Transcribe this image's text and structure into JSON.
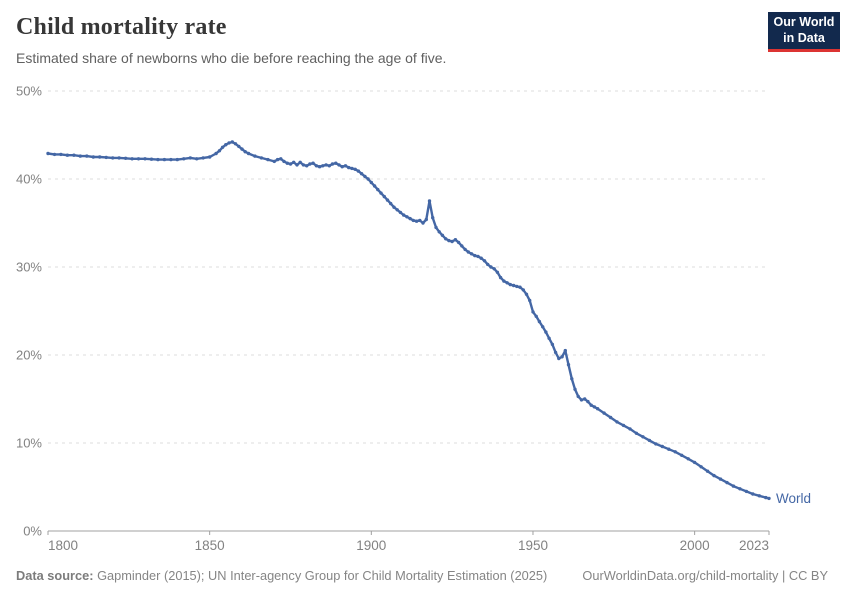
{
  "header": {
    "title": "Child mortality rate",
    "subtitle": "Estimated share of newborns who die before reaching the age of five."
  },
  "logo": {
    "line1": "Our World",
    "line2": "in Data",
    "bg_color": "#12294d",
    "accent_color": "#dc3432"
  },
  "footer": {
    "data_source_label": "Data source:",
    "data_source_text": " Gapminder (2015); UN Inter-agency Group for Child Mortality Estimation (2025)",
    "attribution_link": "OurWorldinData.org/child-mortality",
    "attribution_suffix": " | CC BY"
  },
  "chart_data": {
    "type": "line",
    "title": "Child mortality rate",
    "subtitle": "Estimated share of newborns who die before reaching the age of five.",
    "xlabel": "",
    "ylabel": "",
    "xlim": [
      1800,
      2023
    ],
    "ylim": [
      0,
      50
    ],
    "x_ticks": [
      1800,
      1850,
      1900,
      1950,
      2000,
      2023
    ],
    "y_ticks": [
      0,
      10,
      20,
      30,
      40,
      50
    ],
    "y_tick_suffix": "%",
    "grid": "horizontal-dashed",
    "legend": "end-of-line-label",
    "colors": {
      "line": "#4467a5",
      "gridline": "#dcdcdc",
      "axis": "#a0a0a0",
      "tick_label": "#828282"
    },
    "series": [
      {
        "name": "World",
        "color": "#4467a5",
        "points": [
          [
            1800,
            42.9
          ],
          [
            1802,
            42.8
          ],
          [
            1804,
            42.8
          ],
          [
            1806,
            42.7
          ],
          [
            1808,
            42.7
          ],
          [
            1810,
            42.6
          ],
          [
            1812,
            42.6
          ],
          [
            1814,
            42.5
          ],
          [
            1816,
            42.5
          ],
          [
            1818,
            42.45
          ],
          [
            1820,
            42.4
          ],
          [
            1822,
            42.4
          ],
          [
            1824,
            42.35
          ],
          [
            1826,
            42.3
          ],
          [
            1828,
            42.3
          ],
          [
            1830,
            42.3
          ],
          [
            1832,
            42.25
          ],
          [
            1834,
            42.2
          ],
          [
            1836,
            42.2
          ],
          [
            1838,
            42.2
          ],
          [
            1840,
            42.2
          ],
          [
            1842,
            42.3
          ],
          [
            1844,
            42.4
          ],
          [
            1846,
            42.3
          ],
          [
            1848,
            42.4
          ],
          [
            1850,
            42.5
          ],
          [
            1852,
            42.9
          ],
          [
            1853,
            43.2
          ],
          [
            1854,
            43.6
          ],
          [
            1855,
            43.9
          ],
          [
            1856,
            44.1
          ],
          [
            1857,
            44.2
          ],
          [
            1858,
            44.0
          ],
          [
            1859,
            43.7
          ],
          [
            1860,
            43.4
          ],
          [
            1861,
            43.1
          ],
          [
            1862,
            42.9
          ],
          [
            1864,
            42.6
          ],
          [
            1866,
            42.4
          ],
          [
            1868,
            42.2
          ],
          [
            1870,
            42.0
          ],
          [
            1871,
            42.2
          ],
          [
            1872,
            42.3
          ],
          [
            1873,
            42.0
          ],
          [
            1874,
            41.8
          ],
          [
            1875,
            41.7
          ],
          [
            1876,
            41.9
          ],
          [
            1877,
            41.6
          ],
          [
            1878,
            41.9
          ],
          [
            1879,
            41.6
          ],
          [
            1880,
            41.5
          ],
          [
            1881,
            41.7
          ],
          [
            1882,
            41.8
          ],
          [
            1883,
            41.5
          ],
          [
            1884,
            41.4
          ],
          [
            1885,
            41.5
          ],
          [
            1886,
            41.6
          ],
          [
            1887,
            41.5
          ],
          [
            1888,
            41.7
          ],
          [
            1889,
            41.8
          ],
          [
            1890,
            41.6
          ],
          [
            1891,
            41.4
          ],
          [
            1892,
            41.5
          ],
          [
            1893,
            41.3
          ],
          [
            1894,
            41.2
          ],
          [
            1895,
            41.1
          ],
          [
            1896,
            40.9
          ],
          [
            1897,
            40.6
          ],
          [
            1898,
            40.3
          ],
          [
            1899,
            40.0
          ],
          [
            1900,
            39.6
          ],
          [
            1901,
            39.2
          ],
          [
            1902,
            38.8
          ],
          [
            1903,
            38.4
          ],
          [
            1904,
            38.0
          ],
          [
            1905,
            37.6
          ],
          [
            1906,
            37.2
          ],
          [
            1907,
            36.8
          ],
          [
            1908,
            36.5
          ],
          [
            1909,
            36.2
          ],
          [
            1910,
            35.9
          ],
          [
            1911,
            35.7
          ],
          [
            1912,
            35.5
          ],
          [
            1913,
            35.3
          ],
          [
            1914,
            35.2
          ],
          [
            1915,
            35.3
          ],
          [
            1916,
            35.0
          ],
          [
            1917,
            35.4
          ],
          [
            1918,
            37.5
          ],
          [
            1919,
            35.6
          ],
          [
            1920,
            34.5
          ],
          [
            1921,
            34.0
          ],
          [
            1922,
            33.6
          ],
          [
            1923,
            33.2
          ],
          [
            1924,
            33.0
          ],
          [
            1925,
            32.9
          ],
          [
            1926,
            33.1
          ],
          [
            1927,
            32.8
          ],
          [
            1928,
            32.4
          ],
          [
            1929,
            32.0
          ],
          [
            1930,
            31.7
          ],
          [
            1931,
            31.5
          ],
          [
            1932,
            31.3
          ],
          [
            1933,
            31.2
          ],
          [
            1934,
            31.0
          ],
          [
            1935,
            30.7
          ],
          [
            1936,
            30.3
          ],
          [
            1937,
            30.0
          ],
          [
            1938,
            29.8
          ],
          [
            1939,
            29.4
          ],
          [
            1940,
            28.8
          ],
          [
            1941,
            28.4
          ],
          [
            1942,
            28.2
          ],
          [
            1943,
            28.0
          ],
          [
            1944,
            27.9
          ],
          [
            1945,
            27.8
          ],
          [
            1946,
            27.7
          ],
          [
            1947,
            27.4
          ],
          [
            1948,
            26.9
          ],
          [
            1949,
            26.2
          ],
          [
            1950,
            24.9
          ],
          [
            1951,
            24.4
          ],
          [
            1952,
            23.8
          ],
          [
            1953,
            23.2
          ],
          [
            1954,
            22.6
          ],
          [
            1955,
            21.9
          ],
          [
            1956,
            21.2
          ],
          [
            1957,
            20.3
          ],
          [
            1958,
            19.6
          ],
          [
            1959,
            19.8
          ],
          [
            1960,
            20.5
          ],
          [
            1961,
            18.9
          ],
          [
            1962,
            17.3
          ],
          [
            1963,
            16.1
          ],
          [
            1964,
            15.3
          ],
          [
            1965,
            14.9
          ],
          [
            1966,
            15.0
          ],
          [
            1967,
            14.7
          ],
          [
            1968,
            14.3
          ],
          [
            1969,
            14.1
          ],
          [
            1970,
            13.9
          ],
          [
            1972,
            13.4
          ],
          [
            1974,
            12.9
          ],
          [
            1976,
            12.4
          ],
          [
            1978,
            12.0
          ],
          [
            1980,
            11.6
          ],
          [
            1982,
            11.1
          ],
          [
            1984,
            10.7
          ],
          [
            1986,
            10.3
          ],
          [
            1988,
            9.9
          ],
          [
            1990,
            9.6
          ],
          [
            1992,
            9.3
          ],
          [
            1994,
            9.0
          ],
          [
            1996,
            8.6
          ],
          [
            1998,
            8.2
          ],
          [
            2000,
            7.8
          ],
          [
            2002,
            7.3
          ],
          [
            2004,
            6.8
          ],
          [
            2006,
            6.3
          ],
          [
            2008,
            5.9
          ],
          [
            2010,
            5.5
          ],
          [
            2012,
            5.1
          ],
          [
            2014,
            4.8
          ],
          [
            2016,
            4.5
          ],
          [
            2018,
            4.2
          ],
          [
            2020,
            4.0
          ],
          [
            2022,
            3.8
          ],
          [
            2023,
            3.7
          ]
        ]
      }
    ]
  }
}
